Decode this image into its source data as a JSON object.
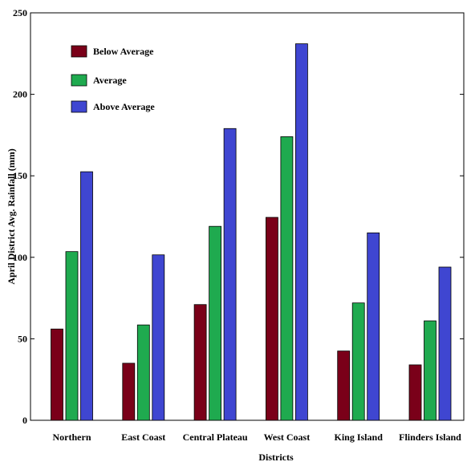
{
  "chart_data": {
    "type": "bar",
    "title": "",
    "xlabel": "Districts",
    "ylabel": "April District Avg. Rainfall (mm)",
    "ylim": [
      0,
      250
    ],
    "yticks": [
      0,
      50,
      100,
      150,
      200,
      250
    ],
    "categories": [
      "Northern",
      "East Coast",
      "Central Plateau",
      "West Coast",
      "King Island",
      "Flinders Island"
    ],
    "series": [
      {
        "name": "Below Average",
        "color": "#7a0019",
        "values": [
          56,
          35,
          71,
          124.5,
          42.5,
          34
        ]
      },
      {
        "name": "Average",
        "color": "#1faa4f",
        "values": [
          103.5,
          58.5,
          119,
          174,
          72,
          61
        ]
      },
      {
        "name": "Above Average",
        "color": "#3f46d1",
        "values": [
          152.5,
          101.5,
          179,
          231,
          115,
          94
        ]
      }
    ],
    "legend_position": "top-left",
    "grid": false
  }
}
